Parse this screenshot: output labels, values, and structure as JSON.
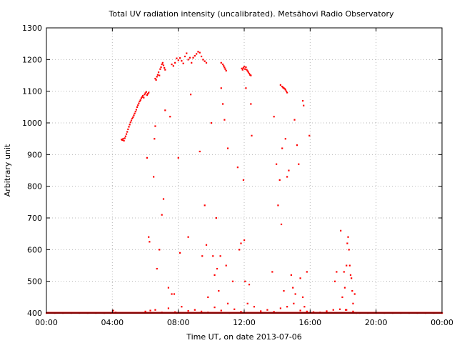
{
  "chart_data": {
    "type": "scatter",
    "title": "Total UV radiation intensity (uncalibrated). Metsähovi Radio Observatory",
    "xlabel": "Time UT, on date 2013-07-06",
    "ylabel": "Arbitrary unit",
    "xlim": [
      0,
      24
    ],
    "ylim": [
      400,
      1300
    ],
    "x_unit": "hours UT",
    "x_ticks": [
      0,
      4,
      8,
      12,
      16,
      20,
      24
    ],
    "x_tick_labels": [
      "00:00",
      "04:00",
      "08:00",
      "12:00",
      "16:00",
      "20:00",
      "00:00"
    ],
    "y_ticks": [
      400,
      500,
      600,
      700,
      800,
      900,
      1000,
      1100,
      1200,
      1300
    ],
    "y_tick_labels": [
      "400",
      "500",
      "600",
      "700",
      "800",
      "900",
      "1000",
      "1100",
      "1200",
      "1300"
    ],
    "grid": true,
    "grid_style": "dotted",
    "marker_color": "#ff0000",
    "series": [
      {
        "x": [
          0.0,
          0.5,
          1.0,
          1.5,
          2.0,
          2.5,
          3.0,
          3.5,
          3.9,
          4.05,
          4.2,
          4.55,
          4.6,
          4.65,
          4.7,
          4.75,
          4.8,
          4.85,
          4.9,
          4.95,
          5.0,
          5.05,
          5.1,
          5.15,
          5.2,
          5.25,
          5.3,
          5.35,
          5.4,
          5.45,
          5.5,
          5.55,
          5.6,
          5.65,
          5.7,
          5.75,
          5.8,
          5.85,
          5.9,
          5.95,
          6.0,
          6.05,
          6.1,
          6.15,
          6.2,
          6.6,
          6.65,
          6.7,
          6.75,
          6.8,
          6.85,
          6.9,
          6.95,
          7.0,
          7.05,
          7.1,
          7.15,
          7.2,
          7.6,
          7.7,
          7.8,
          7.9,
          8.0,
          8.1,
          8.2,
          8.3,
          8.4,
          8.5,
          8.6,
          8.7,
          8.8,
          8.9,
          9.0,
          9.1,
          9.2,
          9.3,
          9.4,
          9.5,
          9.6,
          9.7,
          10.6,
          10.7,
          10.75,
          10.8,
          10.85,
          10.9,
          11.85,
          11.9,
          11.95,
          12.0,
          12.05,
          12.1,
          12.15,
          12.2,
          12.25,
          12.3,
          12.35,
          12.4,
          14.2,
          14.3,
          14.35,
          14.4,
          14.45,
          14.5,
          14.55,
          14.6,
          15.55,
          15.6,
          6.1,
          6.2,
          6.25,
          6.5,
          6.55,
          6.6,
          6.7,
          6.85,
          7.0,
          7.1,
          7.2,
          7.4,
          7.5,
          7.6,
          7.75,
          7.9,
          8.0,
          8.1,
          8.6,
          8.75,
          9.3,
          9.45,
          9.6,
          9.7,
          9.8,
          10.0,
          10.1,
          10.2,
          10.3,
          10.35,
          10.45,
          10.55,
          10.6,
          10.7,
          10.8,
          10.9,
          11.0,
          11.1,
          11.3,
          11.6,
          11.7,
          11.8,
          11.95,
          12.0,
          12.05,
          12.1,
          12.3,
          12.4,
          12.45,
          13.7,
          13.8,
          13.95,
          14.05,
          14.15,
          14.25,
          14.3,
          14.4,
          14.5,
          14.6,
          14.7,
          14.85,
          14.95,
          15.05,
          15.1,
          15.2,
          15.3,
          15.4,
          15.55,
          15.65,
          15.8,
          15.95,
          17.5,
          17.6,
          17.85,
          17.95,
          18.05,
          18.1,
          18.15,
          18.2,
          18.25,
          18.3,
          18.35,
          18.4,
          18.45,
          18.5,
          18.55,
          18.6,
          18.7,
          6.0,
          6.3,
          6.6,
          7.0,
          7.4,
          7.8,
          8.2,
          8.6,
          9.0,
          9.4,
          9.8,
          10.2,
          10.6,
          11.0,
          11.4,
          11.8,
          12.2,
          12.6,
          13.0,
          13.4,
          13.8,
          14.2,
          14.6,
          15.0,
          15.4,
          15.8,
          16.2,
          16.6,
          17.0,
          17.4,
          17.8,
          18.2,
          18.6,
          18.8,
          19.0,
          19.5,
          20.0,
          20.5,
          21.0,
          21.5,
          22.0,
          22.5,
          23.0,
          23.5,
          24.0
        ],
        "y": [
          400,
          400,
          400,
          400,
          400,
          400,
          400,
          400,
          400,
          408,
          402,
          948,
          946,
          950,
          944,
          952,
          958,
          965,
          972,
          980,
          988,
          995,
          1002,
          1008,
          1014,
          1018,
          1024,
          1030,
          1036,
          1042,
          1050,
          1056,
          1062,
          1068,
          1072,
          1078,
          1082,
          1086,
          1080,
          1090,
          1094,
          1098,
          1088,
          1092,
          1096,
          1140,
          1136,
          1146,
          1152,
          1160,
          1150,
          1170,
          1176,
          1185,
          1190,
          1182,
          1174,
          1168,
          1185,
          1180,
          1190,
          1204,
          1198,
          1205,
          1196,
          1188,
          1210,
          1220,
          1200,
          1206,
          1190,
          1206,
          1212,
          1218,
          1225,
          1222,
          1210,
          1200,
          1195,
          1190,
          1190,
          1185,
          1180,
          1175,
          1170,
          1165,
          1172,
          1168,
          1174,
          1178,
          1170,
          1176,
          1168,
          1164,
          1160,
          1156,
          1152,
          1150,
          1120,
          1115,
          1112,
          1110,
          1108,
          1105,
          1100,
          1096,
          1070,
          1055,
          890,
          640,
          625,
          830,
          950,
          990,
          540,
          600,
          710,
          760,
          1040,
          480,
          1020,
          460,
          460,
          400,
          890,
          590,
          640,
          1090,
          910,
          580,
          740,
          615,
          450,
          1000,
          580,
          520,
          700,
          540,
          470,
          580,
          1110,
          1060,
          1010,
          550,
          920,
          400,
          500,
          860,
          600,
          620,
          820,
          630,
          500,
          1110,
          490,
          1060,
          960,
          530,
          1020,
          870,
          740,
          820,
          680,
          920,
          470,
          950,
          830,
          850,
          520,
          480,
          1010,
          460,
          930,
          870,
          510,
          450,
          420,
          530,
          960,
          500,
          530,
          660,
          450,
          530,
          480,
          410,
          550,
          620,
          640,
          600,
          550,
          520,
          510,
          470,
          430,
          460,
          405,
          408,
          410,
          402,
          415,
          403,
          420,
          407,
          410,
          405,
          402,
          418,
          408,
          430,
          412,
          404,
          430,
          420,
          406,
          410,
          404,
          415,
          420,
          430,
          408,
          405,
          403,
          402,
          406,
          410,
          412,
          410,
          405,
          400,
          400,
          400,
          400,
          400,
          400,
          400,
          400,
          400,
          400,
          400,
          400
        ]
      }
    ]
  }
}
